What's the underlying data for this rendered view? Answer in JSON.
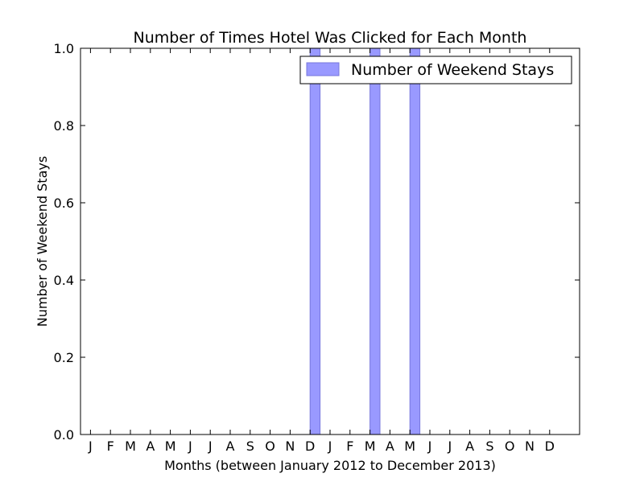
{
  "chart_data": {
    "type": "bar",
    "title": "Number of Times Hotel Was Clicked for Each Month",
    "xlabel": "Months (between January 2012 to December 2013)",
    "ylabel": "Number of Weekend Stays",
    "categories": [
      "J",
      "F",
      "M",
      "A",
      "M",
      "J",
      "J",
      "A",
      "S",
      "O",
      "N",
      "D",
      "J",
      "F",
      "M",
      "A",
      "M",
      "J",
      "J",
      "A",
      "S",
      "O",
      "N",
      "D"
    ],
    "series": [
      {
        "name": "Number of Weekend Stays",
        "values": [
          0,
          0,
          0,
          0,
          0,
          0,
          0,
          0,
          0,
          0,
          0,
          1,
          0,
          0,
          1,
          0,
          1,
          0,
          0,
          0,
          0,
          0,
          0,
          0
        ]
      }
    ],
    "ylim": [
      0,
      1.0
    ],
    "yticks": [
      "0.0",
      "0.2",
      "0.4",
      "0.6",
      "0.8",
      "1.0"
    ],
    "legend_position": "top-right",
    "grid": false,
    "bar_color": "#9999ff",
    "bar_edge_color": "#7777dd"
  }
}
